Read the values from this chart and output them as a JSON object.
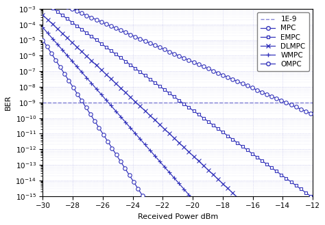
{
  "xlabel": "Received Power dBm",
  "ylabel": "BER",
  "xlim": [
    -30,
    -12
  ],
  "ylim": [
    1e-15,
    0.001
  ],
  "xticks": [
    -30,
    -28,
    -26,
    -24,
    -22,
    -20,
    -18,
    -16,
    -14,
    -12
  ],
  "ref_ber": 1e-09,
  "color": "#3333BB",
  "grid_color": "#CCCCEE",
  "series": [
    {
      "name": "MPC",
      "marker": "o",
      "A": 0.003,
      "k": 1.35,
      "markersize": 4,
      "hollow": true,
      "marker_every": 10
    },
    {
      "name": "EMPC",
      "marker": "s",
      "A": 0.0015,
      "k": 1.6,
      "markersize": 3,
      "hollow": true,
      "marker_every": 10
    },
    {
      "name": "DLMPC",
      "marker": "x",
      "A": 0.0005,
      "k": 2.0,
      "markersize": 4,
      "hollow": false,
      "marker_every": 10
    },
    {
      "name": "WMPC",
      "marker": "+",
      "A": 0.00012,
      "k": 2.4,
      "markersize": 4,
      "hollow": false,
      "marker_every": 10
    },
    {
      "name": "OMPC",
      "marker": "o",
      "A": 1e-05,
      "k": 3.2,
      "markersize": 4,
      "hollow": true,
      "marker_every": 8
    }
  ]
}
